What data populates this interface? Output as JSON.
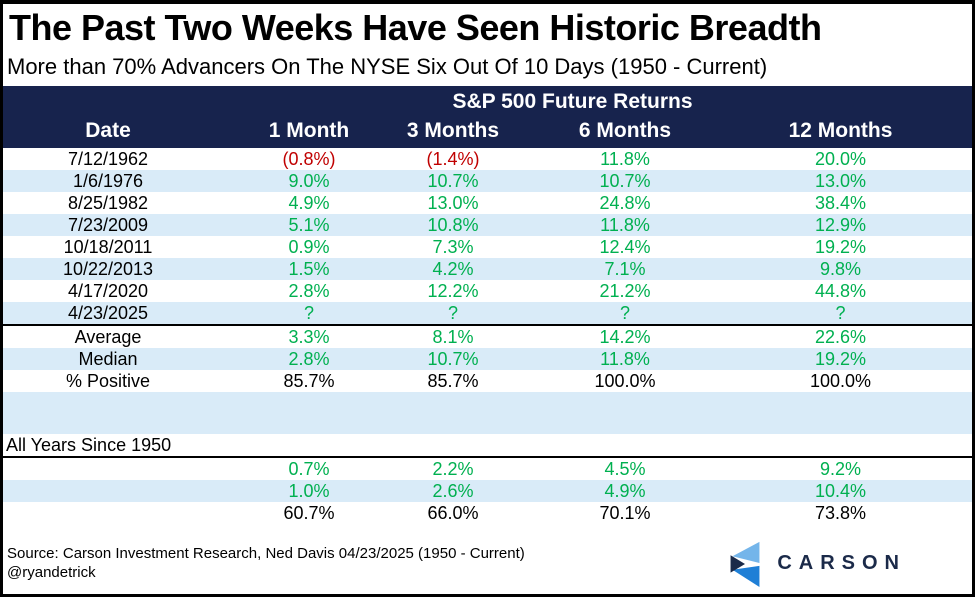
{
  "title": "The Past Two Weeks Have Seen Historic Breadth",
  "subtitle": "More than 70% Advancers On The NYSE Six Out Of 10 Days (1950 - Current)",
  "table": {
    "group_header": "S&P 500 Future Returns",
    "columns": [
      "Date",
      "1 Month",
      "3 Months",
      "6 Months",
      "12 Months"
    ],
    "rows": [
      {
        "label": "7/12/1962",
        "values": [
          "(0.8%)",
          "(1.4%)",
          "11.8%",
          "20.0%"
        ],
        "style": "returns"
      },
      {
        "label": "1/6/1976",
        "values": [
          "9.0%",
          "10.7%",
          "10.7%",
          "13.0%"
        ],
        "style": "returns"
      },
      {
        "label": "8/25/1982",
        "values": [
          "4.9%",
          "13.0%",
          "24.8%",
          "38.4%"
        ],
        "style": "returns"
      },
      {
        "label": "7/23/2009",
        "values": [
          "5.1%",
          "10.8%",
          "11.8%",
          "12.9%"
        ],
        "style": "returns"
      },
      {
        "label": "10/18/2011",
        "values": [
          "0.9%",
          "7.3%",
          "12.4%",
          "19.2%"
        ],
        "style": "returns"
      },
      {
        "label": "10/22/2013",
        "values": [
          "1.5%",
          "4.2%",
          "7.1%",
          "9.8%"
        ],
        "style": "returns"
      },
      {
        "label": "4/17/2020",
        "values": [
          "2.8%",
          "12.2%",
          "21.2%",
          "44.8%"
        ],
        "style": "returns"
      },
      {
        "label": "4/23/2025",
        "values": [
          "?",
          "?",
          "?",
          "?"
        ],
        "style": "returns"
      }
    ],
    "summary_rows": [
      {
        "label": "Average",
        "values": [
          "3.3%",
          "8.1%",
          "14.2%",
          "22.6%"
        ],
        "style": "returns"
      },
      {
        "label": "Median",
        "values": [
          "2.8%",
          "10.7%",
          "11.8%",
          "19.2%"
        ],
        "style": "returns"
      },
      {
        "label": "% Positive",
        "values": [
          "85.7%",
          "85.7%",
          "100.0%",
          "100.0%"
        ],
        "style": "plain"
      }
    ],
    "all_years_label": "All Years Since 1950",
    "all_years_rows": [
      {
        "label": "",
        "values": [
          "0.7%",
          "2.2%",
          "4.5%",
          "9.2%"
        ],
        "style": "returns"
      },
      {
        "label": "",
        "values": [
          "1.0%",
          "2.6%",
          "4.9%",
          "10.4%"
        ],
        "style": "returns"
      },
      {
        "label": "",
        "values": [
          "60.7%",
          "66.0%",
          "70.1%",
          "73.8%"
        ],
        "style": "plain"
      }
    ]
  },
  "footer": {
    "source_line": "Source: Carson Investment Research, Ned Davis 04/23/2025 (1950 - Current)",
    "handle": "@ryandetrick",
    "logo_text": "CARSON"
  },
  "colors": {
    "navy": "#17234D",
    "row_blue": "#D9EBF8",
    "positive_green": "#00B050",
    "negative_red": "#C00000",
    "logo_light_blue": "#74B5EA",
    "logo_mid_blue": "#1F7FD6",
    "logo_navy": "#1B2A49"
  },
  "chart_data": {
    "type": "table",
    "title": "The Past Two Weeks Have Seen Historic Breadth",
    "subtitle": "More than 70% Advancers On The NYSE Six Out Of 10 Days (1950 - Current)",
    "group_header": "S&P 500 Future Returns",
    "columns": [
      "Date",
      "1 Month",
      "3 Months",
      "6 Months",
      "12 Months"
    ],
    "signal_rows": [
      [
        "7/12/1962",
        "(0.8%)",
        "(1.4%)",
        "11.8%",
        "20.0%"
      ],
      [
        "1/6/1976",
        "9.0%",
        "10.7%",
        "10.7%",
        "13.0%"
      ],
      [
        "8/25/1982",
        "4.9%",
        "13.0%",
        "24.8%",
        "38.4%"
      ],
      [
        "7/23/2009",
        "5.1%",
        "10.8%",
        "11.8%",
        "12.9%"
      ],
      [
        "10/18/2011",
        "0.9%",
        "7.3%",
        "12.4%",
        "19.2%"
      ],
      [
        "10/22/2013",
        "1.5%",
        "4.2%",
        "7.1%",
        "9.8%"
      ],
      [
        "4/17/2020",
        "2.8%",
        "12.2%",
        "21.2%",
        "44.8%"
      ],
      [
        "4/23/2025",
        "?",
        "?",
        "?",
        "?"
      ]
    ],
    "summary_rows": [
      [
        "Average",
        "3.3%",
        "8.1%",
        "14.2%",
        "22.6%"
      ],
      [
        "Median",
        "2.8%",
        "10.7%",
        "11.8%",
        "19.2%"
      ],
      [
        "% Positive",
        "85.7%",
        "85.7%",
        "100.0%",
        "100.0%"
      ]
    ],
    "all_years_since_1950_rows": [
      [
        "",
        "0.7%",
        "2.2%",
        "4.5%",
        "9.2%"
      ],
      [
        "",
        "1.0%",
        "2.6%",
        "4.9%",
        "10.4%"
      ],
      [
        "",
        "60.7%",
        "66.0%",
        "70.1%",
        "73.8%"
      ]
    ],
    "source": "Source: Carson Investment Research, Ned Davis 04/23/2025 (1950 - Current)"
  }
}
